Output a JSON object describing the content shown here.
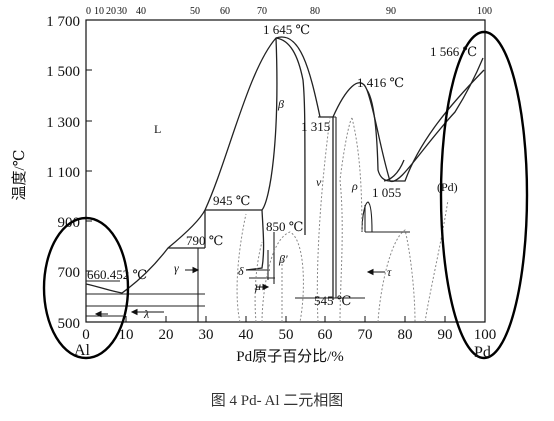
{
  "figure": {
    "y_axis_label": "温度/℃",
    "x_axis_label": "Pd原子百分比/%",
    "caption": "图 4   Pd- Al 二元相图",
    "left_element": "Al",
    "right_element": "Pd",
    "y_ticks": [
      "1 700",
      "1 500",
      "1 300",
      "1 100",
      "900",
      "700",
      "500"
    ],
    "x_ticks": [
      "0",
      "10",
      "20",
      "30",
      "40",
      "50",
      "60",
      "70",
      "80",
      "90",
      "100"
    ],
    "top_ticks": [
      "0",
      "10",
      "20",
      "30",
      "40",
      "50",
      "60",
      "70",
      "80",
      "90",
      "100"
    ],
    "temperature_annotations": [
      "1 645 ℃",
      "1 416 ℃",
      "1 566 ℃",
      "1 315",
      "945 ℃",
      "790 ℃",
      "850 ℃",
      "660.452 ℃",
      "1 055",
      "545 ℃"
    ],
    "phase_labels": [
      "L",
      "β",
      "ν",
      "ρ",
      "(Pd)",
      "γ",
      "δ",
      "μ",
      "β'",
      "λ",
      "τ"
    ]
  },
  "chart_data": {
    "type": "diagram",
    "xlabel": "Pd原子百分比/%",
    "ylabel": "温度/℃",
    "xlim": [
      0,
      100
    ],
    "ylim": [
      500,
      1700
    ]
  }
}
